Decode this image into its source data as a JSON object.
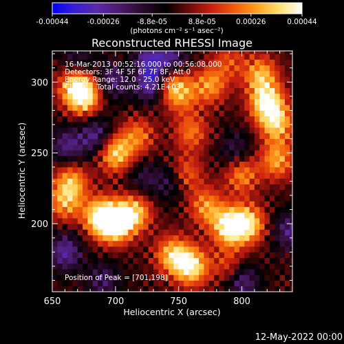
{
  "chart_data": {
    "type": "heatmap",
    "title": "Reconstructed RHESSI Image",
    "xlabel": "Heliocentric X (arcsec)",
    "ylabel": "Heliocentric Y (arcsec)",
    "x_ticks": [
      "650",
      "700",
      "750",
      "800"
    ],
    "y_ticks": [
      "200",
      "250",
      "300"
    ],
    "x_tick_values": [
      650,
      700,
      750,
      800
    ],
    "y_tick_values": [
      200,
      250,
      300
    ],
    "xlim": [
      650,
      840
    ],
    "ylim": [
      152,
      322
    ],
    "annotations": [
      "16-Mar-2013 00:52:16.000 to 00:56:08.000",
      "Detectors: 3F 4F 5F 6F 7F 8F, Att 0",
      "Energy Range: 12.0 - 25.0 keV",
      "Clean     Total counts: 4.21E+03"
    ],
    "peak_label": "Position of Peak = [701,198]",
    "peak_position": [
      701,
      198
    ],
    "colorbar": {
      "tick_labels": [
        "-0.00044",
        "-0.00026",
        "-8.8e-05",
        "8.8e-05",
        "0.00026",
        "0.00044"
      ],
      "tick_values": [
        -0.00044,
        -0.00026,
        -8.8e-05,
        8.8e-05,
        0.00026,
        0.00044
      ],
      "range": [
        -0.00044,
        0.00044
      ],
      "unit_label": "(photons cm⁻² s⁻¹ asec⁻²)",
      "colors": [
        "#0000ff",
        "#3a1fd0",
        "#5a2aa8",
        "#4a1a6a",
        "#2a0a2a",
        "#000000",
        "#6a0a0a",
        "#c82010",
        "#f05a0a",
        "#ffa020",
        "#ffe070",
        "#ffffff"
      ]
    },
    "hotspots": [
      {
        "x": 700,
        "y": 200,
        "value": 0.00044
      },
      {
        "x": 688,
        "y": 205,
        "value": 0.0004
      },
      {
        "x": 715,
        "y": 208,
        "value": 0.00034
      },
      {
        "x": 760,
        "y": 170,
        "value": 0.0004
      },
      {
        "x": 745,
        "y": 178,
        "value": 0.00032
      },
      {
        "x": 790,
        "y": 198,
        "value": 0.00042
      },
      {
        "x": 805,
        "y": 200,
        "value": 0.00036
      },
      {
        "x": 772,
        "y": 212,
        "value": 0.00026
      },
      {
        "x": 700,
        "y": 250,
        "value": 0.00036
      },
      {
        "x": 718,
        "y": 262,
        "value": 0.00022
      },
      {
        "x": 675,
        "y": 290,
        "value": 0.00038
      },
      {
        "x": 668,
        "y": 298,
        "value": 0.0003
      },
      {
        "x": 740,
        "y": 300,
        "value": 0.00034
      },
      {
        "x": 752,
        "y": 292,
        "value": 0.00024
      },
      {
        "x": 775,
        "y": 298,
        "value": 0.00026
      },
      {
        "x": 820,
        "y": 285,
        "value": 0.00042
      },
      {
        "x": 828,
        "y": 270,
        "value": 0.0003
      },
      {
        "x": 815,
        "y": 305,
        "value": 0.0003
      },
      {
        "x": 760,
        "y": 265,
        "value": 0.00022
      },
      {
        "x": 755,
        "y": 235,
        "value": 0.00024
      },
      {
        "x": 800,
        "y": 235,
        "value": 0.00026
      },
      {
        "x": 665,
        "y": 230,
        "value": 0.00028
      },
      {
        "x": 660,
        "y": 215,
        "value": 0.00026
      },
      {
        "x": 790,
        "y": 170,
        "value": 0.00018
      },
      {
        "x": 828,
        "y": 245,
        "value": 0.00028
      },
      {
        "x": 715,
        "y": 310,
        "value": 0.0002
      },
      {
        "x": 790,
        "y": 315,
        "value": 0.00016
      }
    ],
    "coldspots": [
      {
        "x": 730,
        "y": 300,
        "value": -0.00044
      },
      {
        "x": 722,
        "y": 315,
        "value": -0.0003
      },
      {
        "x": 743,
        "y": 316,
        "value": -0.00026
      },
      {
        "x": 700,
        "y": 302,
        "value": -0.00024
      },
      {
        "x": 685,
        "y": 262,
        "value": -0.00024
      },
      {
        "x": 660,
        "y": 180,
        "value": -0.00026
      },
      {
        "x": 800,
        "y": 160,
        "value": -0.00024
      },
      {
        "x": 838,
        "y": 195,
        "value": -0.00022
      },
      {
        "x": 745,
        "y": 230,
        "value": -0.00018
      },
      {
        "x": 662,
        "y": 255,
        "value": -0.00022
      },
      {
        "x": 795,
        "y": 252,
        "value": -0.00016
      },
      {
        "x": 722,
        "y": 232,
        "value": -0.00014
      },
      {
        "x": 690,
        "y": 160,
        "value": -0.00018
      },
      {
        "x": 670,
        "y": 315,
        "value": -0.00016
      }
    ]
  },
  "footer": {
    "date": "12-May-2022 00:00"
  }
}
